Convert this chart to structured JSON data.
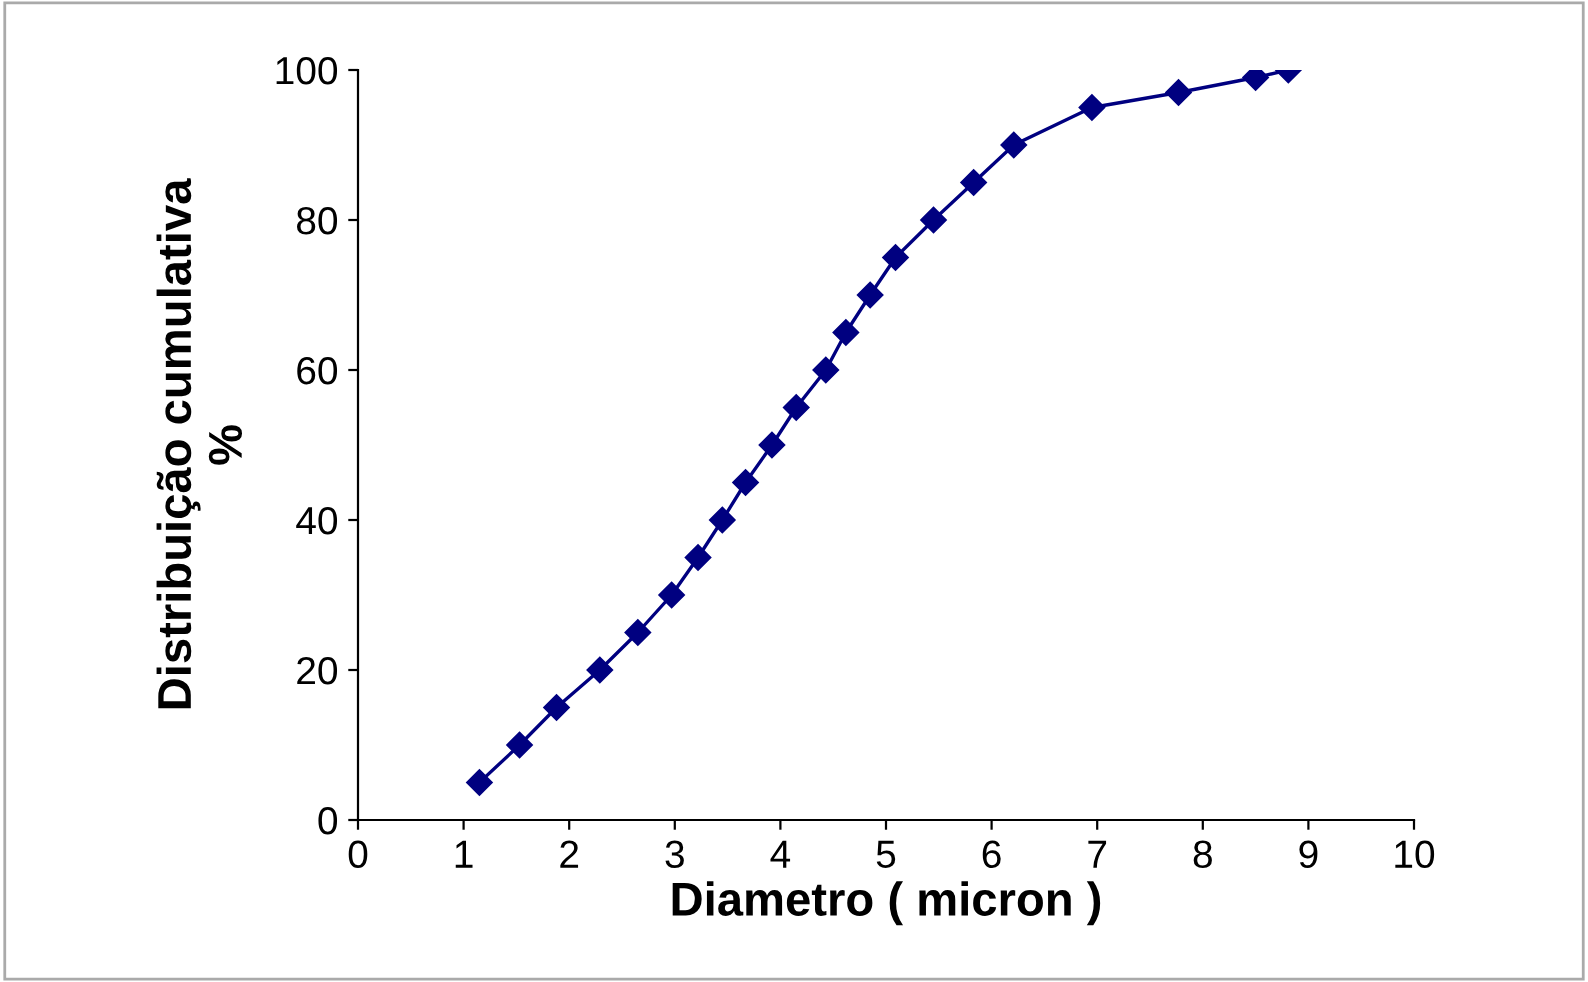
{
  "chart_data": {
    "type": "line",
    "xlabel": "Diametro ( micron )",
    "ylabel": "Distribuição cumulativa\n%",
    "xlim": [
      0,
      10
    ],
    "ylim": [
      0,
      100
    ],
    "xticks": [
      0,
      1,
      2,
      3,
      4,
      5,
      6,
      7,
      8,
      9,
      10
    ],
    "yticks": [
      0,
      20,
      40,
      60,
      80,
      100
    ],
    "grid": false,
    "legend": false,
    "marker": "diamond",
    "line_style": "solid",
    "series": [
      {
        "color": "#000080",
        "x": [
          1.15,
          1.53,
          1.88,
          2.29,
          2.65,
          2.97,
          3.22,
          3.45,
          3.67,
          3.92,
          4.15,
          4.43,
          4.62,
          4.85,
          5.09,
          5.45,
          5.83,
          6.21,
          6.95,
          7.77,
          8.5,
          8.81
        ],
        "values": [
          5,
          10,
          15,
          20,
          25,
          30,
          35,
          40,
          45,
          50,
          55,
          60,
          65,
          70,
          75,
          80,
          85,
          90,
          95,
          97,
          99,
          100
        ]
      }
    ]
  }
}
